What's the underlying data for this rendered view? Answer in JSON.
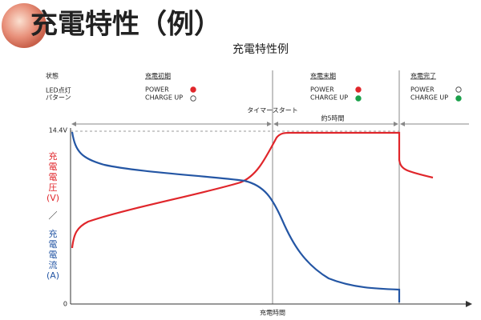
{
  "header": {
    "title": "充電特性（例）",
    "subtitle": "充電特性例"
  },
  "status": {
    "label": "状態",
    "led_label_1": "LED点灯",
    "led_label_2": "パターン",
    "phases": [
      {
        "name": "充電初期",
        "power": "POWER",
        "charge": "CHARGE UP"
      },
      {
        "name": "充電末期",
        "power": "POWER",
        "charge": "CHARGE UP"
      },
      {
        "name": "充電完了",
        "power": "POWER",
        "charge": "CHARGE UP"
      }
    ]
  },
  "graph": {
    "timer": "タイマースタート",
    "duration": "約5時間",
    "y_top": "14.4V",
    "y_zero": "0",
    "voltage_label": [
      "充",
      "電",
      "電",
      "圧",
      "(V)"
    ],
    "slash": "／",
    "current_label": [
      "充",
      "電",
      "電",
      "流",
      "(A)"
    ],
    "x_label": "充電時間"
  }
}
